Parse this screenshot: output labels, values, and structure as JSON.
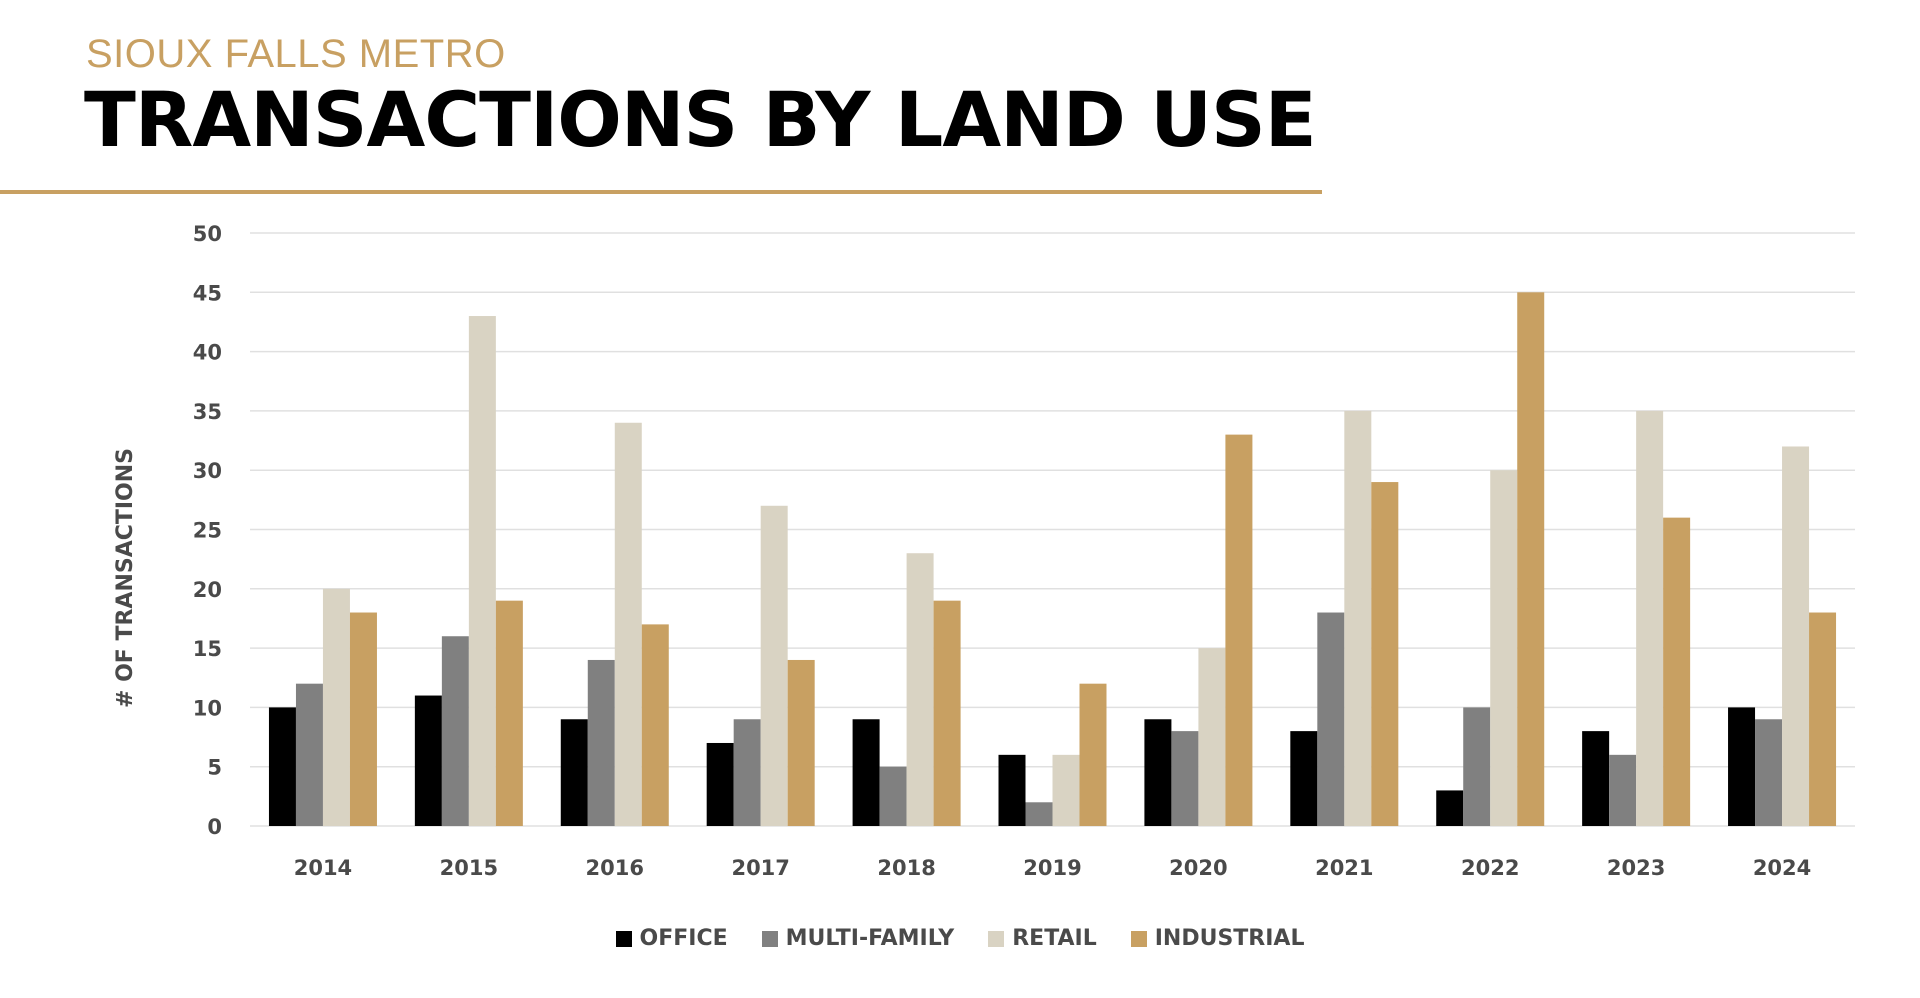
{
  "header": {
    "subtitle": "SIOUX FALLS METRO",
    "title": "TRANSACTIONS BY LAND USE"
  },
  "colors": {
    "accent": "#C8A062",
    "grid": "#e0e0e0",
    "text": "#4a4a4a"
  },
  "chart_data": {
    "type": "bar",
    "title": "TRANSACTIONS BY LAND USE",
    "xlabel": "",
    "ylabel": "# OF TRANSACTIONS",
    "ylim": [
      0,
      50
    ],
    "yticks": [
      0,
      5,
      10,
      15,
      20,
      25,
      30,
      35,
      40,
      45,
      50
    ],
    "grid": true,
    "legend_position": "bottom",
    "categories": [
      "2014",
      "2015",
      "2016",
      "2017",
      "2018",
      "2019",
      "2020",
      "2021",
      "2022",
      "2023",
      "2024"
    ],
    "series": [
      {
        "name": "OFFICE",
        "color": "#000000",
        "values": [
          10,
          11,
          9,
          7,
          9,
          6,
          9,
          8,
          3,
          8,
          10
        ]
      },
      {
        "name": "MULTI-FAMILY",
        "color": "#808080",
        "values": [
          12,
          16,
          14,
          9,
          5,
          2,
          8,
          18,
          10,
          6,
          9
        ]
      },
      {
        "name": "RETAIL",
        "color": "#D9D3C3",
        "values": [
          20,
          43,
          34,
          27,
          23,
          6,
          15,
          35,
          30,
          35,
          32
        ]
      },
      {
        "name": "INDUSTRIAL",
        "color": "#C8A062",
        "values": [
          18,
          19,
          17,
          14,
          19,
          12,
          33,
          29,
          45,
          26,
          18
        ]
      }
    ]
  }
}
